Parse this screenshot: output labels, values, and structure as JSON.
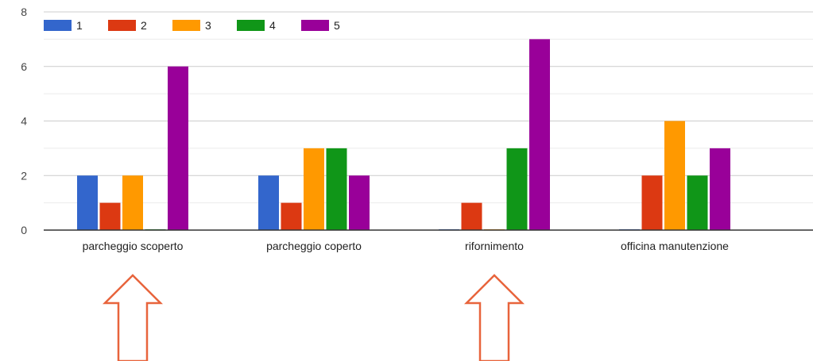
{
  "chart_data": {
    "type": "bar",
    "categories": [
      "parcheggio scoperto",
      "parcheggio coperto",
      "rifornimento",
      "officina manutenzione"
    ],
    "series": [
      {
        "name": "1",
        "values": [
          2,
          2,
          0,
          0
        ]
      },
      {
        "name": "2",
        "values": [
          1,
          1,
          1,
          2
        ]
      },
      {
        "name": "3",
        "values": [
          2,
          3,
          0,
          4
        ]
      },
      {
        "name": "4",
        "values": [
          0,
          3,
          3,
          2
        ]
      },
      {
        "name": "5",
        "values": [
          6,
          2,
          7,
          3
        ]
      }
    ],
    "ylim": [
      0,
      8
    ],
    "yticks": [
      0,
      2,
      4,
      6,
      8
    ],
    "grid": true,
    "legend_position": "top-left",
    "colors": [
      "#3366cc",
      "#dc3912",
      "#ff9900",
      "#109618",
      "#990099"
    ],
    "annotations": [
      {
        "type": "up-arrow",
        "category": "parcheggio scoperto",
        "color": "#e8643c"
      },
      {
        "type": "up-arrow",
        "category": "rifornimento",
        "color": "#e8643c"
      }
    ]
  }
}
